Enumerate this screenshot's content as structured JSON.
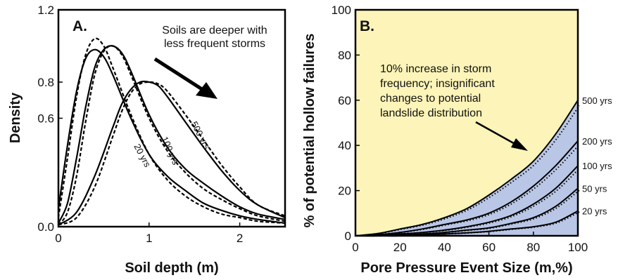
{
  "chart_data": [
    {
      "type": "line",
      "panel_label": "A.",
      "xlabel": "Soil depth (m)",
      "ylabel": "Density",
      "xlim": [
        0,
        2.5
      ],
      "ylim": [
        0,
        1.2
      ],
      "xticks": [
        "0",
        "1",
        "2"
      ],
      "yticks": [
        "0.0",
        "0.6",
        "0.8",
        "1.2"
      ],
      "annotation": [
        "Soils are deeper with",
        "less frequent storms"
      ],
      "series": [
        {
          "name": "20 yrs",
          "style": "solid",
          "x": [
            0,
            0.1,
            0.2,
            0.3,
            0.4,
            0.5,
            0.6,
            0.8,
            1.0,
            1.2,
            1.4,
            1.6,
            1.8,
            2.0,
            2.2,
            2.5
          ],
          "y": [
            0.1,
            0.45,
            0.75,
            0.93,
            0.98,
            0.94,
            0.84,
            0.6,
            0.4,
            0.28,
            0.2,
            0.13,
            0.09,
            0.06,
            0.04,
            0.02
          ]
        },
        {
          "name": "20 yrs",
          "style": "dashed",
          "x": [
            0,
            0.1,
            0.2,
            0.3,
            0.4,
            0.5,
            0.6,
            0.8,
            1.0,
            1.2,
            1.4,
            1.6,
            1.8,
            2.0,
            2.2,
            2.5
          ],
          "y": [
            0.05,
            0.38,
            0.72,
            0.95,
            1.04,
            1.0,
            0.88,
            0.62,
            0.4,
            0.26,
            0.17,
            0.11,
            0.07,
            0.05,
            0.03,
            0.02
          ]
        },
        {
          "name": "100 yrs",
          "style": "solid",
          "x": [
            0,
            0.1,
            0.2,
            0.3,
            0.4,
            0.5,
            0.6,
            0.7,
            0.8,
            1.0,
            1.2,
            1.4,
            1.6,
            1.8,
            2.0,
            2.2,
            2.5
          ],
          "y": [
            0.02,
            0.13,
            0.38,
            0.66,
            0.88,
            0.98,
            1.0,
            0.96,
            0.86,
            0.62,
            0.44,
            0.32,
            0.24,
            0.17,
            0.11,
            0.07,
            0.04
          ]
        },
        {
          "name": "100 yrs",
          "style": "dashed",
          "x": [
            0,
            0.1,
            0.2,
            0.3,
            0.4,
            0.5,
            0.6,
            0.7,
            0.8,
            1.0,
            1.2,
            1.4,
            1.6,
            1.8,
            2.0,
            2.2,
            2.5
          ],
          "y": [
            0.01,
            0.08,
            0.28,
            0.58,
            0.84,
            0.97,
            1.0,
            0.95,
            0.84,
            0.6,
            0.42,
            0.3,
            0.21,
            0.15,
            0.1,
            0.06,
            0.03
          ]
        },
        {
          "name": "500 yrs",
          "style": "solid",
          "x": [
            0,
            0.2,
            0.4,
            0.6,
            0.7,
            0.8,
            0.9,
            1.0,
            1.1,
            1.2,
            1.4,
            1.6,
            1.8,
            2.0,
            2.2,
            2.5
          ],
          "y": [
            0.01,
            0.08,
            0.28,
            0.55,
            0.68,
            0.76,
            0.8,
            0.8,
            0.78,
            0.72,
            0.58,
            0.44,
            0.31,
            0.2,
            0.12,
            0.05
          ]
        },
        {
          "name": "500 yrs",
          "style": "dashed",
          "x": [
            0,
            0.2,
            0.4,
            0.6,
            0.7,
            0.8,
            0.9,
            1.0,
            1.1,
            1.2,
            1.4,
            1.6,
            1.8,
            2.0,
            2.2,
            2.5
          ],
          "y": [
            0.01,
            0.05,
            0.22,
            0.5,
            0.64,
            0.74,
            0.79,
            0.8,
            0.79,
            0.75,
            0.62,
            0.48,
            0.34,
            0.22,
            0.12,
            0.06
          ]
        }
      ],
      "curve_labels": [
        "20 yrs",
        "100 yrs",
        "500 yrs"
      ]
    },
    {
      "type": "area",
      "panel_label": "B.",
      "xlabel": "Pore Pressure Event Size (m,%)",
      "ylabel": "% of potential hollow failures",
      "xlim": [
        0,
        100
      ],
      "ylim": [
        0,
        100
      ],
      "xticks": [
        "0",
        "20",
        "40",
        "60",
        "80",
        "100"
      ],
      "yticks": [
        "0",
        "20",
        "40",
        "60",
        "80",
        "100"
      ],
      "annotation": [
        "10% increase in storm",
        "frequency; insignificant",
        "changes to potential",
        "landslide distribution"
      ],
      "colors": {
        "background": "#fcf4b8",
        "band": "#b9c6e6"
      },
      "series": [
        {
          "name": "500 yrs",
          "x": [
            0,
            10,
            20,
            30,
            40,
            50,
            60,
            70,
            80,
            90,
            100
          ],
          "y": [
            0,
            1,
            3,
            5,
            8,
            12,
            18,
            25,
            33,
            45,
            60
          ]
        },
        {
          "name": "200 yrs",
          "x": [
            0,
            10,
            20,
            30,
            40,
            50,
            60,
            70,
            80,
            90,
            100
          ],
          "y": [
            0,
            0.5,
            1.5,
            3,
            5,
            7,
            10,
            15,
            22,
            31,
            42
          ]
        },
        {
          "name": "100 yrs",
          "x": [
            0,
            10,
            20,
            30,
            40,
            50,
            60,
            70,
            80,
            90,
            100
          ],
          "y": [
            0,
            0.2,
            0.8,
            1.5,
            2.5,
            4,
            6,
            9,
            14,
            21,
            31
          ]
        },
        {
          "name": "50 yrs",
          "x": [
            0,
            10,
            20,
            30,
            40,
            50,
            60,
            70,
            80,
            90,
            100
          ],
          "y": [
            0,
            0,
            0.3,
            0.8,
            1.5,
            2.5,
            3.5,
            5.5,
            8,
            13,
            21
          ]
        },
        {
          "name": "20 yrs",
          "x": [
            0,
            10,
            20,
            30,
            40,
            50,
            60,
            70,
            80,
            90,
            100
          ],
          "y": [
            0,
            0,
            0,
            0.3,
            0.8,
            1.3,
            2,
            3,
            4,
            6,
            11
          ]
        }
      ],
      "line_labels": [
        "500 yrs",
        "200 yrs",
        "100 yrs",
        "50 yrs",
        "20 yrs"
      ]
    }
  ]
}
